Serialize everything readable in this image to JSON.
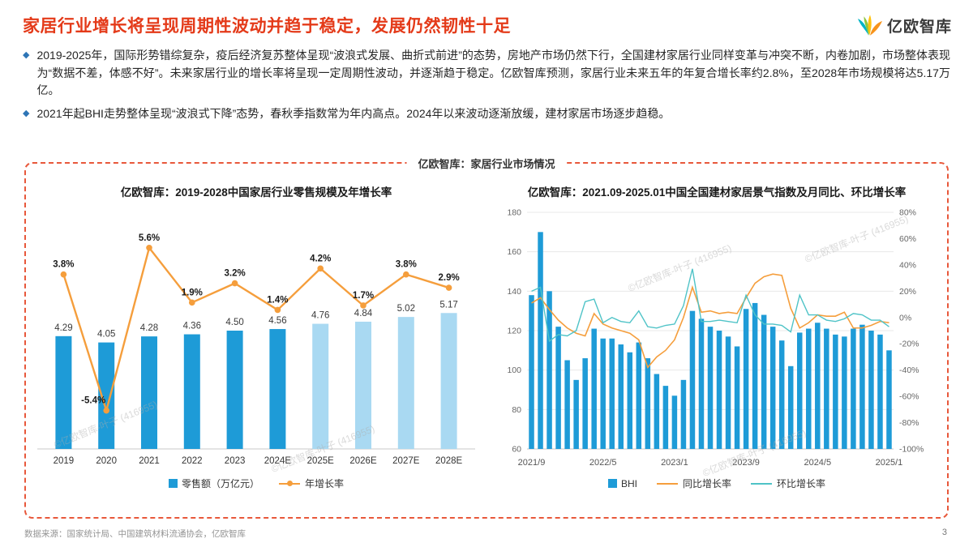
{
  "header": {
    "title": "家居行业增长将呈现周期性波动并趋于稳定，发展仍然韧性十足",
    "logo_text": "亿欧智库"
  },
  "bullet_marker": "◆",
  "bullets": [
    {
      "text": "2019-2025年，国际形势错综复杂，疫后经济复苏整体呈现“波浪式发展、曲折式前进”的态势，房地产市场仍然下行，全国建材家居行业同样变革与冲突不断，内卷加剧，市场整体表现为“数据不差，体感不好”。未来家居行业的增长率将呈现一定周期性波动，并逐渐趋于稳定。亿欧智库预测，家居行业未来五年的年复合增长率约2.8%，至2028年市场规模将达5.17万亿。"
    },
    {
      "text": "2021年起BHI走势整体呈现“波浪式下降”态势，春秋季指数常为年内高点。2024年以来波动逐渐放缓，建材家居市场逐步趋稳。"
    }
  ],
  "box_label": "亿欧智库：家居行业市场情况",
  "colors": {
    "accent_red": "#e43a19",
    "bar_blue": "#1e9bd7",
    "bar_blue_light": "#a9d9f2",
    "line_orange": "#f59e3c",
    "line_teal": "#4fc3c7",
    "bullet_blue": "#2e75b6"
  },
  "chart_data": [
    {
      "type": "bar",
      "subtype": "bar+line combo",
      "title": "亿欧智库：2019-2028中国家居行业零售规模及年增长率",
      "categories": [
        "2019",
        "2020",
        "2021",
        "2022",
        "2023",
        "2024E",
        "2025E",
        "2026E",
        "2027E",
        "2028E"
      ],
      "series": [
        {
          "name": "零售额（万亿元）",
          "type": "bar",
          "values": [
            4.29,
            4.05,
            4.28,
            4.36,
            4.5,
            4.56,
            4.76,
            4.84,
            5.02,
            5.17
          ]
        },
        {
          "name": "年增长率",
          "type": "line",
          "unit": "%",
          "values": [
            3.8,
            -5.4,
            5.6,
            1.9,
            3.2,
            1.4,
            4.2,
            1.7,
            3.8,
            2.9
          ]
        }
      ],
      "bar_color": "#1e9bd7",
      "bar_color_forecast": "#a9d9f2",
      "forecast_from_index": 6,
      "line_color": "#f59e3c",
      "bar_ylim": [
        0,
        9
      ],
      "line_ylim": [
        -8,
        8
      ],
      "legend": [
        "零售额（万亿元）",
        "年增长率"
      ],
      "legend_position": "bottom",
      "grid": false
    },
    {
      "type": "bar",
      "subtype": "bar+2 lines, dual axis, monthly 2021/9-2025/1 (values estimated from plot)",
      "title": "亿欧智库：2021.09-2025.01中国全国建材家居景气指数及月同比、环比增长率",
      "x_tick_labels": [
        "2021/9",
        "2022/5",
        "2023/1",
        "2023/9",
        "2024/5",
        "2025/1"
      ],
      "left_axis": {
        "ticks": [
          60,
          80,
          100,
          120,
          140,
          160,
          180
        ],
        "min": 60,
        "max": 180
      },
      "right_axis": {
        "tick_values": [
          -100,
          -80,
          -60,
          -40,
          -20,
          0,
          20,
          40,
          60,
          80
        ],
        "ticks": [
          "-100%",
          "-80%",
          "-60%",
          "-40%",
          "-20%",
          "0%",
          "20%",
          "40%",
          "60%",
          "80%"
        ],
        "min": -100,
        "max": 80
      },
      "series": [
        {
          "name": "BHI",
          "type": "bar",
          "axis": "left",
          "color": "#1e9bd7",
          "values": [
            138,
            170,
            140,
            122,
            105,
            95,
            106,
            121,
            116,
            116,
            113,
            109,
            114,
            106,
            98,
            92,
            87,
            95,
            130,
            126,
            122,
            120,
            117,
            112,
            131,
            134,
            128,
            122,
            115,
            102,
            119,
            121,
            124,
            121,
            118,
            117,
            121,
            123,
            120,
            118,
            110
          ]
        },
        {
          "name": "同比增长率",
          "type": "line",
          "axis": "right",
          "unit": "%",
          "color": "#f59e3c",
          "values": [
            11,
            15,
            6,
            -2,
            -8,
            -12,
            -14,
            3,
            -5,
            -8,
            -10,
            -12,
            -17,
            -38,
            -30,
            -25,
            -17,
            0,
            23,
            4,
            5,
            3,
            4,
            3,
            15,
            26,
            31,
            33,
            32,
            7,
            -8,
            -4,
            2,
            1,
            1,
            4,
            -8,
            -8,
            -6,
            -3,
            -4
          ]
        },
        {
          "name": "环比增长率",
          "type": "line",
          "axis": "right",
          "unit": "%",
          "color": "#4fc3c7",
          "values": [
            20,
            23,
            -18,
            -13,
            -14,
            -10,
            12,
            14,
            -4,
            0,
            -3,
            -4,
            5,
            -7,
            -8,
            -6,
            -5,
            9,
            37,
            -3,
            -3,
            -2,
            -3,
            -4,
            17,
            2,
            -5,
            -5,
            -6,
            -11,
            17,
            2,
            2,
            -2,
            -3,
            -1,
            3,
            2,
            -2,
            -2,
            -7
          ]
        }
      ],
      "legend": [
        "BHI",
        "同比增长率",
        "环比增长率"
      ],
      "legend_position": "bottom",
      "grid": true
    }
  ],
  "footer": {
    "source": "数据来源：国家统计局、中国建筑材料流通协会，亿欧智库",
    "page": "3"
  },
  "watermark": {
    "text": "©亿欧智库-叶子 (416955)"
  }
}
